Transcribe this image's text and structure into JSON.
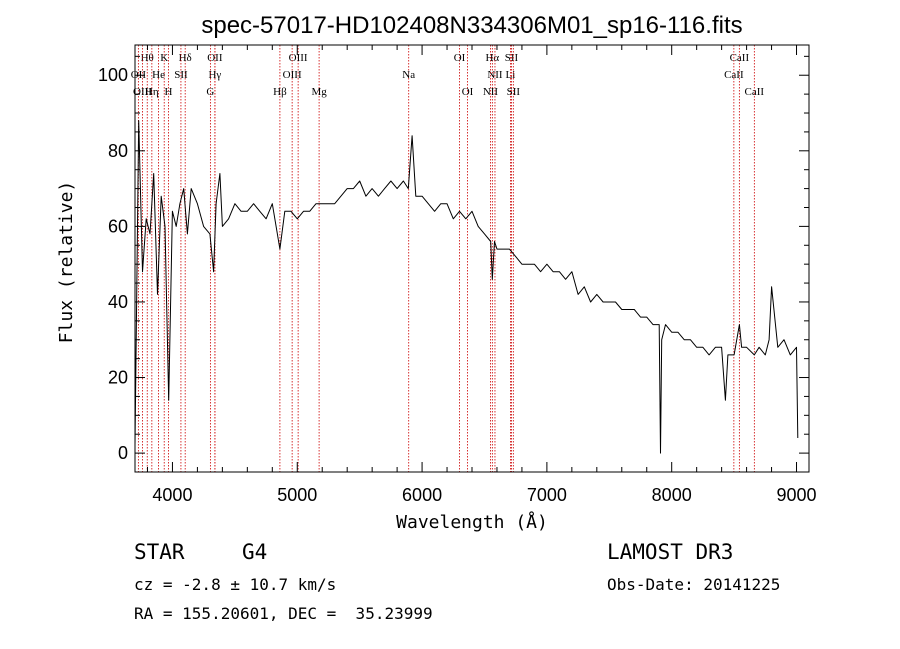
{
  "chart_data": {
    "type": "line",
    "title": "spec-57017-HD102408N334306M01_sp16-116.fits",
    "xlabel": "Wavelength (Å)",
    "ylabel": "Flux (relative)",
    "xlim": [
      3700,
      9100
    ],
    "ylim": [
      -5,
      108
    ],
    "xticks": [
      4000,
      5000,
      6000,
      7000,
      8000,
      9000
    ],
    "yticks": [
      0,
      20,
      40,
      60,
      80,
      100
    ],
    "xtick_labels": [
      "4000",
      "5000",
      "6000",
      "7000",
      "8000",
      "9000"
    ],
    "ytick_labels": [
      "0",
      "20",
      "40",
      "60",
      "80",
      "100"
    ],
    "line_color": "#000000",
    "marker_color": "#cc0000",
    "spectrum": {
      "name": "flux",
      "x": [
        3700,
        3730,
        3760,
        3790,
        3820,
        3850,
        3880,
        3910,
        3940,
        3970,
        4000,
        4030,
        4060,
        4090,
        4120,
        4150,
        4200,
        4250,
        4300,
        4330,
        4350,
        4380,
        4400,
        4450,
        4500,
        4550,
        4600,
        4650,
        4700,
        4750,
        4800,
        4861,
        4900,
        4950,
        5000,
        5050,
        5100,
        5150,
        5200,
        5250,
        5300,
        5350,
        5400,
        5450,
        5500,
        5550,
        5600,
        5650,
        5700,
        5750,
        5800,
        5850,
        5890,
        5920,
        5950,
        6000,
        6050,
        6100,
        6150,
        6200,
        6250,
        6300,
        6350,
        6400,
        6450,
        6500,
        6550,
        6563,
        6580,
        6600,
        6650,
        6700,
        6750,
        6800,
        6850,
        6900,
        6950,
        7000,
        7050,
        7100,
        7150,
        7200,
        7250,
        7300,
        7350,
        7400,
        7450,
        7500,
        7550,
        7600,
        7650,
        7700,
        7750,
        7800,
        7850,
        7900,
        7910,
        7920,
        7950,
        8000,
        8050,
        8100,
        8150,
        8200,
        8250,
        8300,
        8350,
        8400,
        8430,
        8450,
        8500,
        8542,
        8560,
        8600,
        8662,
        8700,
        8750,
        8780,
        8800,
        8850,
        8900,
        8950,
        9000,
        9010
      ],
      "y": [
        2,
        88,
        48,
        62,
        58,
        74,
        42,
        68,
        60,
        14,
        64,
        60,
        66,
        70,
        58,
        70,
        66,
        60,
        58,
        48,
        66,
        74,
        60,
        62,
        66,
        64,
        64,
        66,
        64,
        62,
        66,
        54,
        64,
        64,
        62,
        64,
        64,
        66,
        66,
        66,
        66,
        68,
        70,
        70,
        72,
        68,
        70,
        68,
        70,
        72,
        70,
        72,
        70,
        84,
        68,
        68,
        66,
        64,
        66,
        66,
        62,
        64,
        62,
        64,
        60,
        58,
        56,
        46,
        56,
        54,
        54,
        54,
        52,
        50,
        50,
        50,
        48,
        50,
        48,
        48,
        46,
        48,
        42,
        44,
        40,
        42,
        40,
        40,
        40,
        38,
        38,
        38,
        36,
        36,
        34,
        34,
        0,
        30,
        34,
        32,
        32,
        30,
        30,
        28,
        28,
        26,
        28,
        28,
        14,
        26,
        26,
        34,
        28,
        28,
        26,
        28,
        26,
        30,
        44,
        28,
        30,
        26,
        28,
        4
      ]
    },
    "line_markers": [
      {
        "label": "Hθ",
        "x": 3798,
        "row": 1
      },
      {
        "label": "K",
        "x": 3934,
        "row": 1
      },
      {
        "label": "Hδ",
        "x": 4102,
        "row": 1
      },
      {
        "label": "OII",
        "x": 4340,
        "row": 1
      },
      {
        "label": "OIII",
        "x": 5007,
        "row": 1
      },
      {
        "label": "OI",
        "x": 6300,
        "row": 1
      },
      {
        "label": "Hα",
        "x": 6563,
        "row": 1
      },
      {
        "label": "SII",
        "x": 6716,
        "row": 1
      },
      {
        "label": "CaII",
        "x": 8542,
        "row": 1
      },
      {
        "label": "OII",
        "x": 3727,
        "row": 2
      },
      {
        "label": "He",
        "x": 3889,
        "row": 2
      },
      {
        "label": "SII",
        "x": 4068,
        "row": 2
      },
      {
        "label": "Hγ",
        "x": 4340,
        "row": 2
      },
      {
        "label": "OIII",
        "x": 4959,
        "row": 2
      },
      {
        "label": "Na",
        "x": 5893,
        "row": 2
      },
      {
        "label": "NII",
        "x": 6584,
        "row": 2
      },
      {
        "label": "Li",
        "x": 6708,
        "row": 2
      },
      {
        "label": "CaII",
        "x": 8498,
        "row": 2
      },
      {
        "label": "OIII",
        "x": 3760,
        "row": 3
      },
      {
        "label": "Hη",
        "x": 3835,
        "row": 3
      },
      {
        "label": "H",
        "x": 3968,
        "row": 3
      },
      {
        "label": "G",
        "x": 4304,
        "row": 3
      },
      {
        "label": "Hβ",
        "x": 4861,
        "row": 3
      },
      {
        "label": "Mg",
        "x": 5175,
        "row": 3
      },
      {
        "label": "OI",
        "x": 6364,
        "row": 3
      },
      {
        "label": "NII",
        "x": 6548,
        "row": 3
      },
      {
        "label": "SII",
        "x": 6731,
        "row": 3
      },
      {
        "label": "CaII",
        "x": 8662,
        "row": 3
      }
    ]
  },
  "info": {
    "object_class": "STAR",
    "subclass": "G4",
    "survey": "LAMOST DR3",
    "redshift": "cz = -2.8 ± 10.7 km/s",
    "obs_date": "Obs-Date: 20141225",
    "coords": "RA = 155.20601, DEC =  35.23999"
  }
}
